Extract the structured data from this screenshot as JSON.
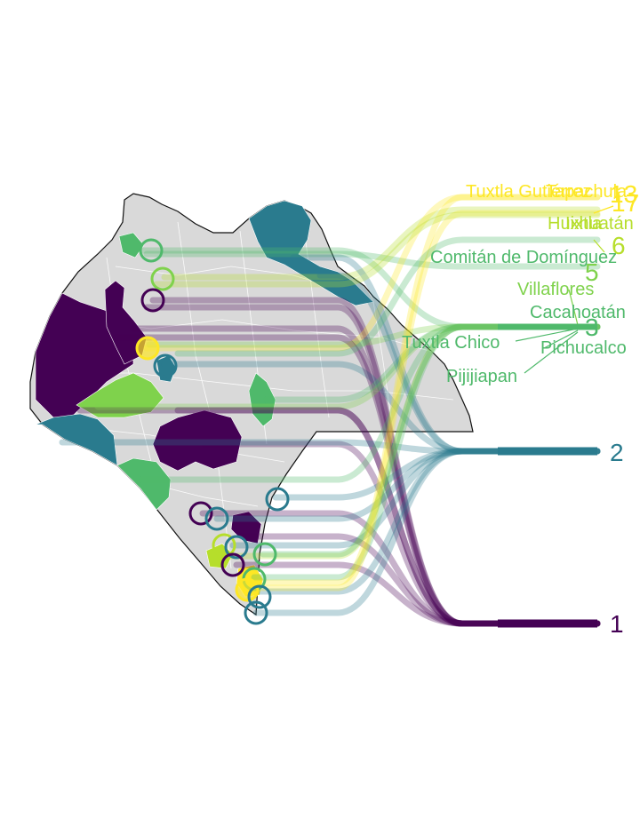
{
  "colors": {
    "background": "#ffffff",
    "base_region": "#d9d9d9",
    "region_border": "#ffffff",
    "outline": "#111111",
    "class_1": "#440154",
    "class_2": "#2a7b8e",
    "class_3": "#4fb96b",
    "class_5": "#7fd24c",
    "class_6": "#b6de2b",
    "class_13": "#fde725"
  },
  "icons": {
    "municipality_marker": "ring-icon"
  },
  "legend_values": [
    {
      "id": "1",
      "label": "1",
      "color_key": "class_1"
    },
    {
      "id": "2",
      "label": "2",
      "color_key": "class_2"
    },
    {
      "id": "3",
      "label": "3",
      "color_key": "class_3"
    },
    {
      "id": "5",
      "label": "5",
      "color_key": "class_5"
    },
    {
      "id": "6",
      "label": "6",
      "color_key": "class_6"
    },
    {
      "id": "13",
      "label": "13",
      "color_key": "class_13"
    },
    {
      "id": "17",
      "label": "17",
      "color_key": "class_13"
    }
  ],
  "place_labels": [
    {
      "id": "tuxtla-gutierrez",
      "text": "Tuxtla Gutiérrez",
      "color_key": "class_13"
    },
    {
      "id": "tapachula",
      "text": "Tapachula",
      "color_key": "class_13"
    },
    {
      "id": "huixtla",
      "text": "Huixtla",
      "color_key": "class_6"
    },
    {
      "id": "ixhuatan",
      "text": "Ixhuatán",
      "color_key": "class_6"
    },
    {
      "id": "comitan",
      "text": "Comitán de Domínguez",
      "color_key": "class_3"
    },
    {
      "id": "villaflores",
      "text": "Villaflores",
      "color_key": "class_5"
    },
    {
      "id": "cacahoatan",
      "text": "Cacahoatán",
      "color_key": "class_3"
    },
    {
      "id": "tuxtla-chico",
      "text": "Tuxtla Chico",
      "color_key": "class_3"
    },
    {
      "id": "pichucalco",
      "text": "Pichucalco",
      "color_key": "class_3"
    },
    {
      "id": "pijijiapan",
      "text": "Pijijiapan",
      "color_key": "class_3"
    }
  ]
}
